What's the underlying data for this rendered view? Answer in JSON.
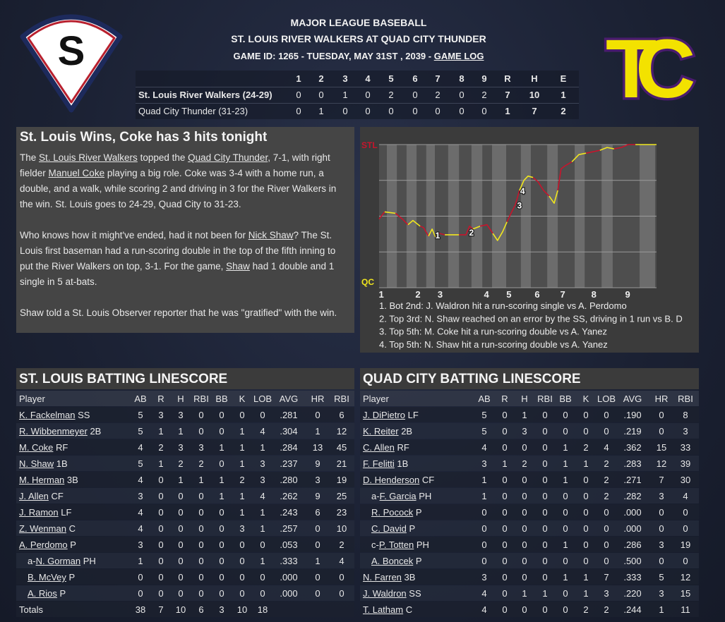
{
  "logos": {
    "away": "S",
    "home": "TC"
  },
  "header": {
    "league": "MAJOR LEAGUE BASEBALL",
    "matchup": "ST. LOUIS RIVER WALKERS AT QUAD CITY THUNDER",
    "game_info": "GAME ID: 1265 - TUESDAY, MAY 31ST , 2039 - ",
    "game_log": "GAME LOG"
  },
  "linescore": {
    "columns": [
      "1",
      "2",
      "3",
      "4",
      "5",
      "6",
      "7",
      "8",
      "9",
      "R",
      "H",
      "E"
    ],
    "rows": [
      {
        "team": "St. Louis River Walkers (24-29)",
        "values": [
          0,
          0,
          1,
          0,
          2,
          0,
          2,
          0,
          2,
          7,
          10,
          1
        ]
      },
      {
        "team": "Quad City Thunder (31-23)",
        "values": [
          0,
          1,
          0,
          0,
          0,
          0,
          0,
          0,
          0,
          1,
          7,
          2
        ]
      }
    ]
  },
  "story": {
    "headline": "St. Louis Wins, Coke has 3 hits tonight",
    "paragraphs": [
      [
        "The ",
        "St. Louis River Walkers",
        " topped the ",
        "Quad City Thunder",
        ", 7-1, with right fielder ",
        "Manuel Coke",
        " playing a big role. Coke was 3-4 with a home run, a double, and a walk, while scoring 2 and driving in 3 for the River Walkers in the win. St. Louis goes to 24-29, Quad City to 31-23."
      ],
      [
        "Who knows how it might've ended, had it not been for ",
        "Nick Shaw",
        "? The St. Louis first baseman had a run-scoring double in the top of the fifth inning to put the River Walkers on top, 3-1. For the game, ",
        "Shaw",
        " had 1 double and 1 single in 5 at-bats."
      ],
      [
        "Shaw told a St. Louis Observer reporter that he was \"gratified\" with the win."
      ]
    ]
  },
  "win_chart": {
    "xlim": [
      0,
      100
    ],
    "ylim": [
      0,
      100
    ],
    "grid": [
      0,
      25,
      50,
      75,
      100
    ],
    "yticks": [
      {
        "value": 100,
        "label": "STL"
      },
      {
        "value": 0,
        "label": "QC"
      }
    ],
    "xticks": [
      {
        "value": 0.8,
        "label": "1"
      },
      {
        "value": 14,
        "label": "2"
      },
      {
        "value": 22,
        "label": "3"
      },
      {
        "value": 38.7,
        "label": "4"
      },
      {
        "value": 46.8,
        "label": "5"
      },
      {
        "value": 57,
        "label": "6"
      },
      {
        "value": 66.2,
        "label": "7"
      },
      {
        "value": 77.4,
        "label": "8"
      },
      {
        "value": 89.6,
        "label": "9"
      }
    ],
    "bands": [
      [
        2.8,
        6.4
      ],
      [
        9.9,
        13.5
      ],
      [
        17,
        20.1
      ],
      [
        24.9,
        28.8
      ],
      [
        33.3,
        37.2
      ],
      [
        40.7,
        45.8
      ],
      [
        51.1,
        54.7
      ],
      [
        60.6,
        64.4
      ],
      [
        70.5,
        74.1
      ],
      [
        80.2,
        84.2
      ],
      [
        93.9,
        99.5
      ]
    ],
    "x": [
      0,
      2,
      5.9,
      8.4,
      10.4,
      12.2,
      14.8,
      16,
      17.8,
      19.1,
      20.4,
      21.6,
      23.7,
      26.2,
      28.8,
      31.3,
      32.6,
      33.8,
      36.4,
      38.9,
      41,
      42.7,
      44.5,
      46.1,
      47.3,
      49.1,
      50.6,
      52.2,
      53.7,
      55.5,
      57.3,
      59.3,
      61.3,
      63.1,
      64.4,
      65.6,
      66.9,
      69.5,
      72,
      74.6,
      77.1,
      79.6,
      82.2,
      84.7,
      87.3,
      89.8,
      92.4,
      100
    ],
    "values": [
      48,
      53,
      52,
      48,
      44,
      47,
      43,
      42,
      36,
      41,
      35,
      38,
      37,
      37,
      37,
      37,
      43,
      41,
      43,
      44,
      38,
      33,
      39,
      46,
      51,
      58,
      68,
      75,
      78,
      77,
      74,
      68,
      64,
      59,
      68,
      83,
      85,
      88,
      93,
      94,
      95,
      96,
      98,
      97,
      98,
      100,
      100,
      100
    ],
    "line_color": "#c8142c",
    "band_line_color": "#f0e61e",
    "markers": [
      {
        "label": "1",
        "x": 21.1,
        "y": 37
      },
      {
        "label": "2",
        "x": 33.3,
        "y": 39
      },
      {
        "label": "3",
        "x": 50.6,
        "y": 58
      },
      {
        "label": "4",
        "x": 51.7,
        "y": 68
      }
    ],
    "notes": [
      "1. Bot 2nd: J. Waldron hit a run-scoring single vs A. Perdomo",
      "2. Top 3rd: N. Shaw reached on an error by the SS, driving in 1 run vs B. D",
      "3. Top 5th: M. Coke hit a run-scoring double vs A. Yanez",
      "4. Top 5th: N. Shaw hit a run-scoring double vs A. Yanez"
    ]
  },
  "batting": [
    {
      "title": "ST. LOUIS BATTING LINESCORE",
      "columns": [
        "Player",
        "AB",
        "R",
        "H",
        "RBI",
        "BB",
        "K",
        "LOB",
        "AVG",
        "HR",
        "RBI"
      ],
      "rows": [
        {
          "player": "K. Fackelman",
          "pos": "SS",
          "stats": [
            5,
            3,
            3,
            0,
            0,
            0,
            0,
            ".281",
            0,
            6
          ]
        },
        {
          "player": "R. Wibbenmeyer",
          "pos": "2B",
          "stats": [
            5,
            1,
            1,
            0,
            0,
            1,
            4,
            ".304",
            1,
            12
          ]
        },
        {
          "player": "M. Coke",
          "pos": "RF",
          "stats": [
            4,
            2,
            3,
            3,
            1,
            1,
            1,
            ".284",
            13,
            45
          ]
        },
        {
          "player": "N. Shaw",
          "pos": "1B",
          "stats": [
            5,
            1,
            2,
            2,
            0,
            1,
            3,
            ".237",
            9,
            21
          ]
        },
        {
          "player": "M. Herman",
          "pos": "3B",
          "stats": [
            4,
            0,
            1,
            1,
            1,
            2,
            3,
            ".280",
            3,
            19
          ]
        },
        {
          "player": "J. Allen",
          "pos": "CF",
          "stats": [
            3,
            0,
            0,
            0,
            1,
            1,
            4,
            ".262",
            9,
            25
          ]
        },
        {
          "player": "J. Ramon",
          "pos": "LF",
          "stats": [
            4,
            0,
            0,
            0,
            0,
            1,
            1,
            ".243",
            6,
            23
          ]
        },
        {
          "player": "Z. Wenman",
          "pos": "C",
          "stats": [
            4,
            0,
            0,
            0,
            0,
            3,
            1,
            ".257",
            0,
            10
          ]
        },
        {
          "player": "A. Perdomo",
          "pos": "P",
          "stats": [
            3,
            0,
            0,
            0,
            0,
            0,
            0,
            ".053",
            0,
            2
          ]
        },
        {
          "prefix": "a-",
          "player": "N. Gorman",
          "pos": "PH",
          "indent": true,
          "stats": [
            1,
            0,
            0,
            0,
            0,
            0,
            1,
            ".333",
            1,
            4
          ]
        },
        {
          "player": "B. McVey",
          "pos": "P",
          "indent": true,
          "stats": [
            0,
            0,
            0,
            0,
            0,
            0,
            0,
            ".000",
            0,
            0
          ]
        },
        {
          "player": "A. Rios",
          "pos": "P",
          "indent": true,
          "stats": [
            0,
            0,
            0,
            0,
            0,
            0,
            0,
            ".000",
            0,
            0
          ]
        }
      ],
      "totals": {
        "label": "Totals",
        "values": [
          38,
          7,
          10,
          6,
          3,
          10,
          18
        ]
      }
    },
    {
      "title": "QUAD CITY BATTING LINESCORE",
      "columns": [
        "Player",
        "AB",
        "R",
        "H",
        "RBI",
        "BB",
        "K",
        "LOB",
        "AVG",
        "HR",
        "RBI"
      ],
      "rows": [
        {
          "player": "J. DiPietro",
          "pos": "LF",
          "stats": [
            5,
            0,
            1,
            0,
            0,
            0,
            0,
            ".190",
            0,
            8
          ]
        },
        {
          "player": "K. Reiter",
          "pos": "2B",
          "stats": [
            5,
            0,
            3,
            0,
            0,
            0,
            0,
            ".219",
            0,
            3
          ]
        },
        {
          "player": "C. Allen",
          "pos": "RF",
          "stats": [
            4,
            0,
            0,
            0,
            1,
            2,
            4,
            ".362",
            15,
            33
          ]
        },
        {
          "player": "F. Felitti",
          "pos": "1B",
          "stats": [
            3,
            1,
            2,
            0,
            1,
            1,
            2,
            ".283",
            12,
            39
          ]
        },
        {
          "player": "D. Henderson",
          "pos": "CF",
          "stats": [
            1,
            0,
            0,
            0,
            1,
            0,
            2,
            ".271",
            7,
            30
          ]
        },
        {
          "prefix": "a-",
          "player": "F. Garcia",
          "pos": "PH",
          "indent": true,
          "stats": [
            1,
            0,
            0,
            0,
            0,
            0,
            2,
            ".282",
            3,
            4
          ]
        },
        {
          "player": "R. Pocock",
          "pos": "P",
          "indent": true,
          "stats": [
            0,
            0,
            0,
            0,
            0,
            0,
            0,
            ".000",
            0,
            0
          ]
        },
        {
          "player": "C. David",
          "pos": "P",
          "indent": true,
          "stats": [
            0,
            0,
            0,
            0,
            0,
            0,
            0,
            ".000",
            0,
            0
          ]
        },
        {
          "prefix": "c-",
          "player": "P. Totten",
          "pos": "PH",
          "indent": true,
          "stats": [
            0,
            0,
            0,
            0,
            1,
            0,
            0,
            ".286",
            3,
            19
          ]
        },
        {
          "player": "A. Boncek",
          "pos": "P",
          "indent": true,
          "stats": [
            0,
            0,
            0,
            0,
            0,
            0,
            0,
            ".500",
            0,
            0
          ]
        },
        {
          "player": "N. Farren",
          "pos": "3B",
          "stats": [
            3,
            0,
            0,
            0,
            1,
            1,
            7,
            ".333",
            5,
            12
          ]
        },
        {
          "player": "J. Waldron",
          "pos": "SS",
          "stats": [
            4,
            0,
            1,
            1,
            0,
            1,
            3,
            ".220",
            3,
            15
          ]
        },
        {
          "player": "T. Latham",
          "pos": "C",
          "stats": [
            4,
            0,
            0,
            0,
            0,
            2,
            2,
            ".244",
            1,
            11
          ]
        }
      ]
    }
  ]
}
